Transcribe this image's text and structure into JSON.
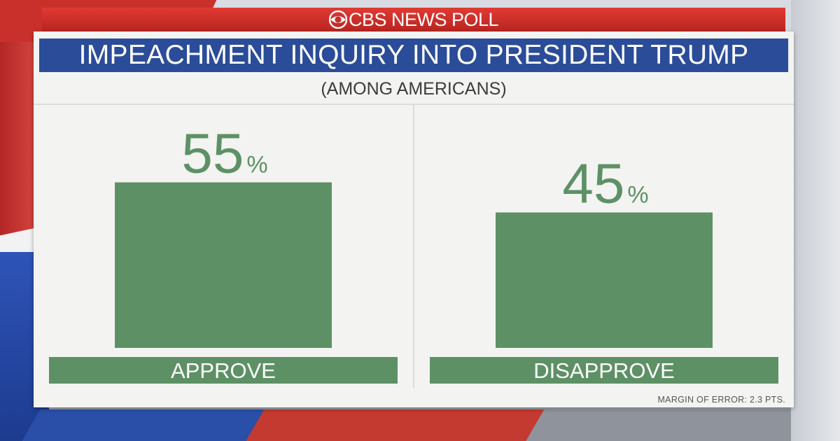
{
  "banner": {
    "text": "CBS NEWS POLL",
    "logo_icon": "cbs-eye-icon"
  },
  "colors": {
    "banner_red": "#c9302c",
    "title_blue": "#2b4c98",
    "bar_green": "#5d9165",
    "value_green": "#5d9165"
  },
  "chart_data": {
    "type": "bar",
    "title": "IMPEACHMENT INQUIRY INTO PRESIDENT TRUMP",
    "subtitle": "(AMONG AMERICANS)",
    "categories": [
      "APPROVE",
      "DISAPPROVE"
    ],
    "values": [
      55,
      45
    ],
    "value_suffix": "%",
    "ylim": [
      0,
      100
    ],
    "grid": false,
    "legend": "none"
  },
  "footnote": "MARGIN OF ERROR: 2.3 PTS."
}
